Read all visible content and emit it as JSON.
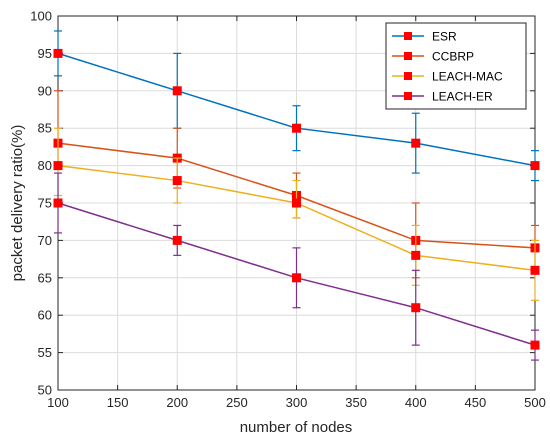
{
  "chart_data": {
    "type": "line",
    "xlabel": "number of nodes",
    "ylabel": "packet delivery ratio(%)",
    "xlim": [
      100,
      500
    ],
    "ylim": [
      50,
      100
    ],
    "xticks": [
      100,
      150,
      200,
      250,
      300,
      350,
      400,
      450,
      500
    ],
    "yticks": [
      50,
      55,
      60,
      65,
      70,
      75,
      80,
      85,
      90,
      95,
      100
    ],
    "grid": true,
    "legend_position": "top-right",
    "x": [
      100,
      200,
      300,
      400,
      500
    ],
    "series": [
      {
        "name": "ESR",
        "color": "#0072BD",
        "values": [
          95,
          90,
          85,
          83,
          80
        ],
        "err_low": [
          92,
          85,
          82,
          79,
          78
        ],
        "err_high": [
          98,
          95,
          88,
          87,
          82
        ]
      },
      {
        "name": "CCBRP",
        "color": "#D95319",
        "values": [
          83,
          81,
          76,
          70,
          69
        ],
        "err_low": [
          80,
          77,
          73,
          65,
          66
        ],
        "err_high": [
          90,
          85,
          79,
          75,
          72
        ]
      },
      {
        "name": "LEACH-MAC",
        "color": "#EDB120",
        "values": [
          80,
          78,
          75,
          68,
          66
        ],
        "err_low": [
          76,
          75,
          73,
          64,
          62
        ],
        "err_high": [
          85,
          81,
          78,
          72,
          70
        ]
      },
      {
        "name": "LEACH-ER",
        "color": "#7E2F8E",
        "values": [
          75,
          70,
          65,
          61,
          56
        ],
        "err_low": [
          71,
          68,
          61,
          56,
          54
        ],
        "err_high": [
          79,
          72,
          69,
          66,
          58
        ]
      }
    ],
    "marker_color": "#FF0000"
  }
}
